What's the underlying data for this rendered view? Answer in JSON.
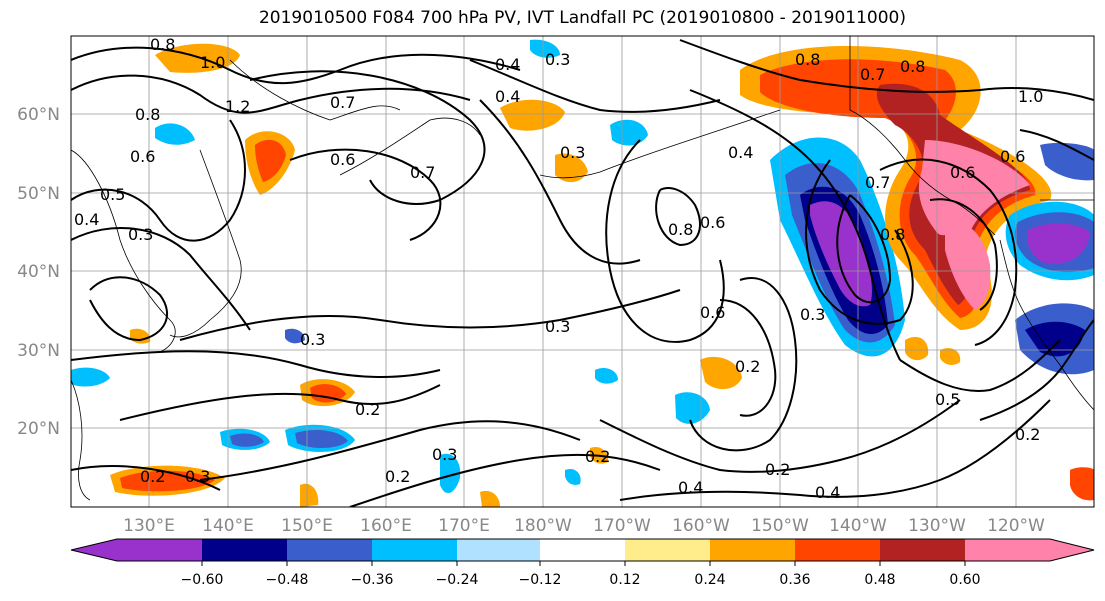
{
  "title": "2019010500 F084 700 hPa PV, IVT Landfall PC (2019010800 - 2019011000)",
  "map": {
    "lat_labels": [
      "60°N",
      "50°N",
      "40°N",
      "30°N",
      "20°N"
    ],
    "lon_labels": [
      "130°E",
      "140°E",
      "150°E",
      "160°E",
      "170°E",
      "180°W",
      "170°W",
      "160°W",
      "150°W",
      "140°W",
      "130°W",
      "120°W"
    ],
    "contour_labels": [
      "0.8",
      "1.0",
      "1.2",
      "0.8",
      "0.6",
      "0.5",
      "0.4",
      "0.3",
      "0.7",
      "0.6",
      "0.7",
      "0.4",
      "0.3",
      "0.4",
      "0.3",
      "0.8",
      "0.7",
      "0.8",
      "1.0",
      "0.4",
      "0.6",
      "0.7",
      "0.8",
      "0.6",
      "0.6",
      "0.3",
      "0.3",
      "0.2",
      "0.2",
      "0.3",
      "0.2",
      "0.2",
      "0.2",
      "0.3",
      "0.4",
      "0.2",
      "0.4",
      "0.5",
      "0.2",
      "0.3",
      "0.8",
      "0.6"
    ]
  },
  "colorbar": {
    "ticks": [
      "−0.60",
      "−0.48",
      "−0.36",
      "−0.24",
      "−0.12",
      "0.12",
      "0.24",
      "0.36",
      "0.48",
      "0.60"
    ],
    "colors": [
      "#9932cc",
      "#00008b",
      "#3a5fcd",
      "#00bfff",
      "#b0e2ff",
      "#ffffff",
      "#ffec8b",
      "#ffa500",
      "#ff4500",
      "#b22222",
      "#ff82ab"
    ]
  }
}
